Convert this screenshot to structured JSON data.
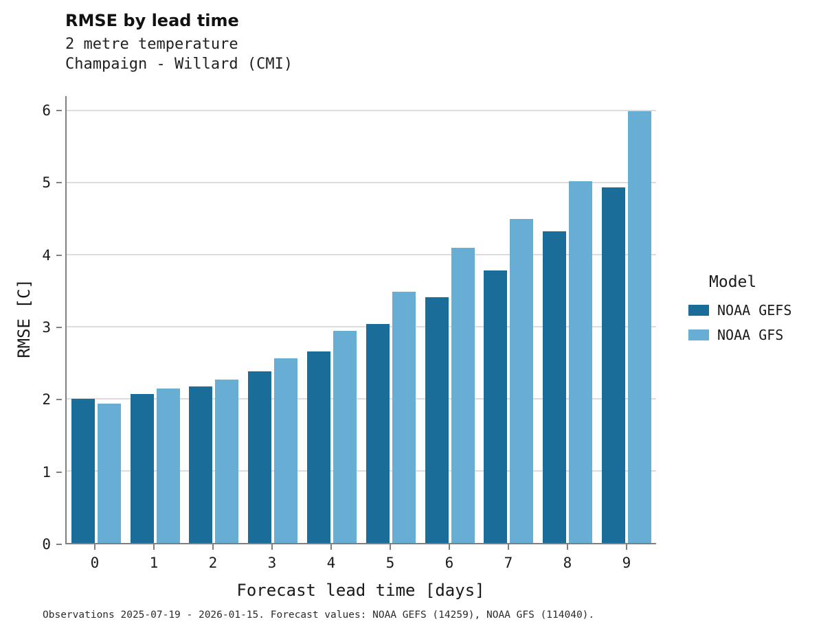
{
  "chart_data": {
    "type": "bar",
    "title": "RMSE by lead time",
    "subtitle1": "2 metre temperature",
    "subtitle2": "Champaign - Willard (CMI)",
    "xlabel": "Forecast lead time [days]",
    "ylabel": "RMSE [C]",
    "categories": [
      "0",
      "1",
      "2",
      "3",
      "4",
      "5",
      "6",
      "7",
      "8",
      "9"
    ],
    "series": [
      {
        "name": "NOAA GEFS",
        "color": "#1b6d99",
        "values": [
          2.0,
          2.07,
          2.17,
          2.38,
          2.66,
          3.04,
          3.41,
          3.78,
          4.32,
          4.93
        ]
      },
      {
        "name": "NOAA GFS",
        "color": "#68aed4",
        "values": [
          1.93,
          2.14,
          2.27,
          2.56,
          2.94,
          3.49,
          4.1,
          4.5,
          5.02,
          5.99
        ]
      }
    ],
    "ylim": [
      0,
      6.2
    ],
    "yticks": [
      0,
      1,
      2,
      3,
      4,
      5,
      6
    ],
    "grid": "horizontal",
    "legend_position": "right",
    "legend_title": "Model",
    "caption": "Observations 2025-07-19 - 2026-01-15. Forecast values: NOAA GEFS (14259), NOAA GFS (114040)."
  }
}
